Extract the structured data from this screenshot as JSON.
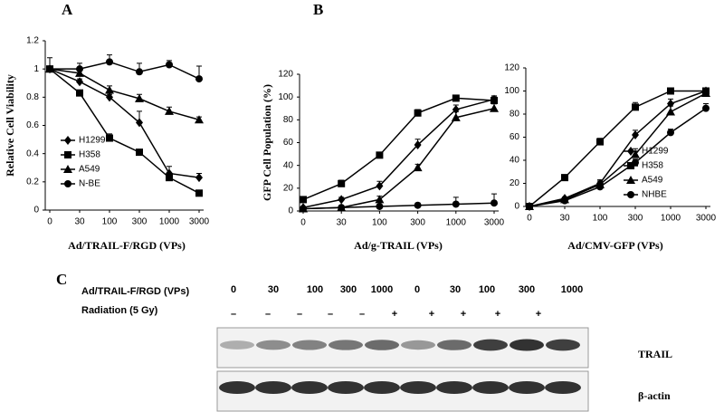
{
  "chart_data": [
    {
      "type": "line",
      "panel": "A",
      "y_label": "Relative Cell Viability",
      "x_label": "Ad/TRAIL-F/RGD (VPs)",
      "categories": [
        "0",
        "30",
        "100",
        "300",
        "1000",
        "3000"
      ],
      "ylim": [
        0,
        1.2
      ],
      "yticks": [
        0,
        0.2,
        0.4,
        0.6,
        0.8,
        1,
        1.2
      ],
      "grid": false,
      "legend": "lower left",
      "color": "#000000",
      "series": [
        {
          "name": "H1299",
          "marker": "diamond",
          "values": [
            1,
            0.91,
            0.8,
            0.62,
            0.26,
            0.23
          ],
          "errors": [
            0,
            0.02,
            0.02,
            0.08,
            0.05,
            0.03
          ]
        },
        {
          "name": "H358",
          "marker": "square",
          "values": [
            1,
            0.83,
            0.51,
            0.41,
            0.23,
            0.12
          ],
          "errors": [
            0,
            0.02,
            0.03,
            0.02,
            0.02,
            0.02
          ]
        },
        {
          "name": "A549",
          "marker": "triangle",
          "values": [
            1,
            0.97,
            0.85,
            0.79,
            0.7,
            0.64
          ],
          "errors": [
            0,
            0.02,
            0.03,
            0.03,
            0.03,
            0.02
          ]
        },
        {
          "name": "N-BE",
          "marker": "circle",
          "values": [
            1,
            1,
            1.05,
            0.98,
            1.03,
            0.93
          ],
          "errors": [
            0.08,
            0.04,
            0.05,
            0.06,
            0.03,
            0.09
          ]
        }
      ]
    },
    {
      "type": "line",
      "panel": "B",
      "y_label": "GFP Cell Population (%)",
      "x_label": "Ad/g-TRAIL (VPs)",
      "categories": [
        "0",
        "30",
        "100",
        "300",
        "1000",
        "3000"
      ],
      "ylim": [
        0,
        120
      ],
      "yticks": [
        0,
        20,
        40,
        60,
        80,
        100,
        120
      ],
      "grid": false,
      "legend": false,
      "color": "#000000",
      "series": [
        {
          "marker": "square",
          "values": [
            10,
            24,
            49,
            86,
            99,
            97
          ],
          "errors": [
            2,
            3,
            2,
            3,
            2,
            3
          ]
        },
        {
          "marker": "diamond",
          "values": [
            3,
            10,
            22,
            58,
            89,
            98
          ],
          "errors": [
            1,
            2,
            4,
            5,
            4,
            3
          ]
        },
        {
          "marker": "triangle",
          "values": [
            2,
            3,
            10,
            38,
            82,
            90
          ],
          "errors": [
            1,
            1,
            3,
            3,
            5,
            4
          ]
        },
        {
          "marker": "circle",
          "values": [
            2,
            3,
            4,
            5,
            6,
            7
          ],
          "errors": [
            1,
            1,
            1,
            2,
            6,
            8
          ]
        }
      ]
    },
    {
      "type": "line",
      "x_label": "Ad/CMV-GFP (VPs)",
      "categories": [
        "0",
        "30",
        "100",
        "300",
        "1000",
        "3000"
      ],
      "ylim": [
        0,
        120
      ],
      "yticks": [
        0,
        20,
        40,
        60,
        80,
        100,
        120
      ],
      "grid": false,
      "legend": "lower right",
      "color": "#000000",
      "series": [
        {
          "name": "H1299",
          "marker": "diamond",
          "values": [
            0,
            7,
            20,
            62,
            89,
            100
          ],
          "errors": [
            1,
            1,
            3,
            4,
            4,
            1
          ]
        },
        {
          "name": "H358",
          "marker": "square",
          "values": [
            0,
            25,
            56,
            86,
            100,
            100
          ],
          "errors": [
            1,
            2,
            3,
            4,
            1,
            1
          ]
        },
        {
          "name": "A549",
          "marker": "triangle",
          "values": [
            0,
            6,
            19,
            45,
            82,
            98
          ],
          "errors": [
            1,
            1,
            3,
            5,
            5,
            3
          ]
        },
        {
          "name": "NHBE",
          "marker": "circle",
          "values": [
            0,
            5,
            17,
            38,
            64,
            85
          ],
          "errors": [
            1,
            1,
            2,
            3,
            3,
            4
          ]
        }
      ]
    }
  ],
  "blot": {
    "panel": "C",
    "dose_label": "Ad/TRAIL-F/RGD (VPs)",
    "doses": [
      "0",
      "30",
      "100",
      "300",
      "1000",
      "0",
      "30",
      "100",
      "300",
      "1000"
    ],
    "radiation_label": "Radiation (5 Gy)",
    "radiation": [
      "–",
      "–",
      "–",
      "–",
      "–",
      "+",
      "+",
      "+",
      "+",
      "+"
    ],
    "bands": [
      "TRAIL",
      "β-actin"
    ]
  }
}
